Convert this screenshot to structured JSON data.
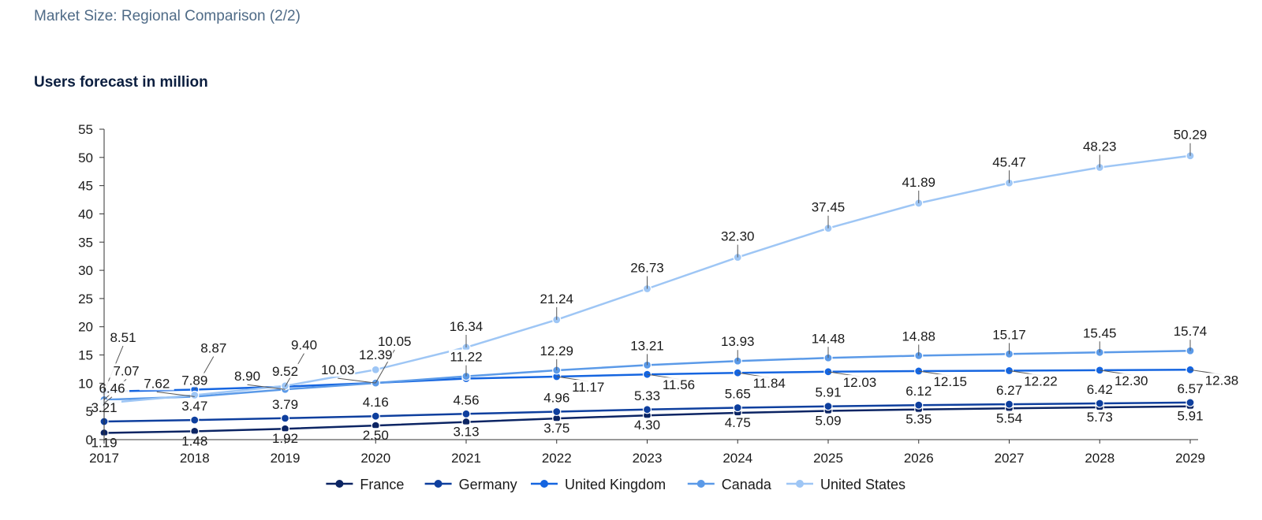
{
  "page": {
    "title": "Market Size: Regional Comparison (2/2)"
  },
  "chart_data": {
    "type": "line",
    "title": "Users forecast in million",
    "xlabel": "",
    "ylabel": "",
    "ylim": [
      0,
      55
    ],
    "yticks": [
      0,
      5,
      10,
      15,
      20,
      25,
      30,
      35,
      40,
      45,
      50,
      55
    ],
    "x": [
      "2017",
      "2018",
      "2019",
      "2020",
      "2021",
      "2022",
      "2023",
      "2024",
      "2025",
      "2026",
      "2027",
      "2028",
      "2029"
    ],
    "grid": false,
    "legend": "bottom",
    "series": [
      {
        "name": "France",
        "color": "#0b2463",
        "values": [
          1.19,
          1.48,
          1.92,
          2.5,
          3.13,
          3.75,
          4.3,
          4.75,
          5.09,
          5.35,
          5.54,
          5.73,
          5.91
        ],
        "labels": [
          "1.19",
          "1.48",
          "1.92",
          "2.50",
          "3.13",
          "3.75",
          "4.30",
          "4.75",
          "5.09",
          "5.35",
          "5.54",
          "5.73",
          "5.91"
        ]
      },
      {
        "name": "Germany",
        "color": "#0e3f9e",
        "values": [
          3.21,
          3.47,
          3.79,
          4.16,
          4.56,
          4.96,
          5.33,
          5.65,
          5.91,
          6.12,
          6.27,
          6.42,
          6.57
        ],
        "labels": [
          "3.21",
          "3.47",
          "3.79",
          "4.16",
          "4.56",
          "4.96",
          "5.33",
          "5.65",
          "5.91",
          "6.12",
          "6.27",
          "6.42",
          "6.57"
        ]
      },
      {
        "name": "United Kingdom",
        "color": "#1565e0",
        "values": [
          8.51,
          8.87,
          9.4,
          10.05,
          10.82,
          11.17,
          11.56,
          11.84,
          12.03,
          12.15,
          12.22,
          12.3,
          12.38
        ],
        "labels": [
          "8.51",
          "8.87",
          "9.40",
          "10.05",
          "",
          "11.17",
          "11.56",
          "11.84",
          "12.03",
          "12.15",
          "12.22",
          "12.30",
          "12.38"
        ]
      },
      {
        "name": "Canada",
        "color": "#5b9ae8",
        "values": [
          7.07,
          7.62,
          8.9,
          10.03,
          11.22,
          12.29,
          13.21,
          13.93,
          14.48,
          14.88,
          15.17,
          15.45,
          15.74
        ],
        "labels": [
          "7.07",
          "7.62",
          "8.90",
          "10.03",
          "11.22",
          "12.29",
          "13.21",
          "13.93",
          "14.48",
          "14.88",
          "15.17",
          "15.45",
          "15.74"
        ]
      },
      {
        "name": "United States",
        "color": "#9ec6f5",
        "values": [
          6.46,
          7.89,
          9.52,
          12.39,
          16.34,
          21.24,
          26.73,
          32.3,
          37.45,
          41.89,
          45.47,
          48.23,
          50.29
        ],
        "labels": [
          "6.46",
          "7.89",
          "9.52",
          "12.39",
          "16.34",
          "21.24",
          "26.73",
          "32.30",
          "37.45",
          "41.89",
          "45.47",
          "48.23",
          "50.29"
        ]
      }
    ]
  }
}
